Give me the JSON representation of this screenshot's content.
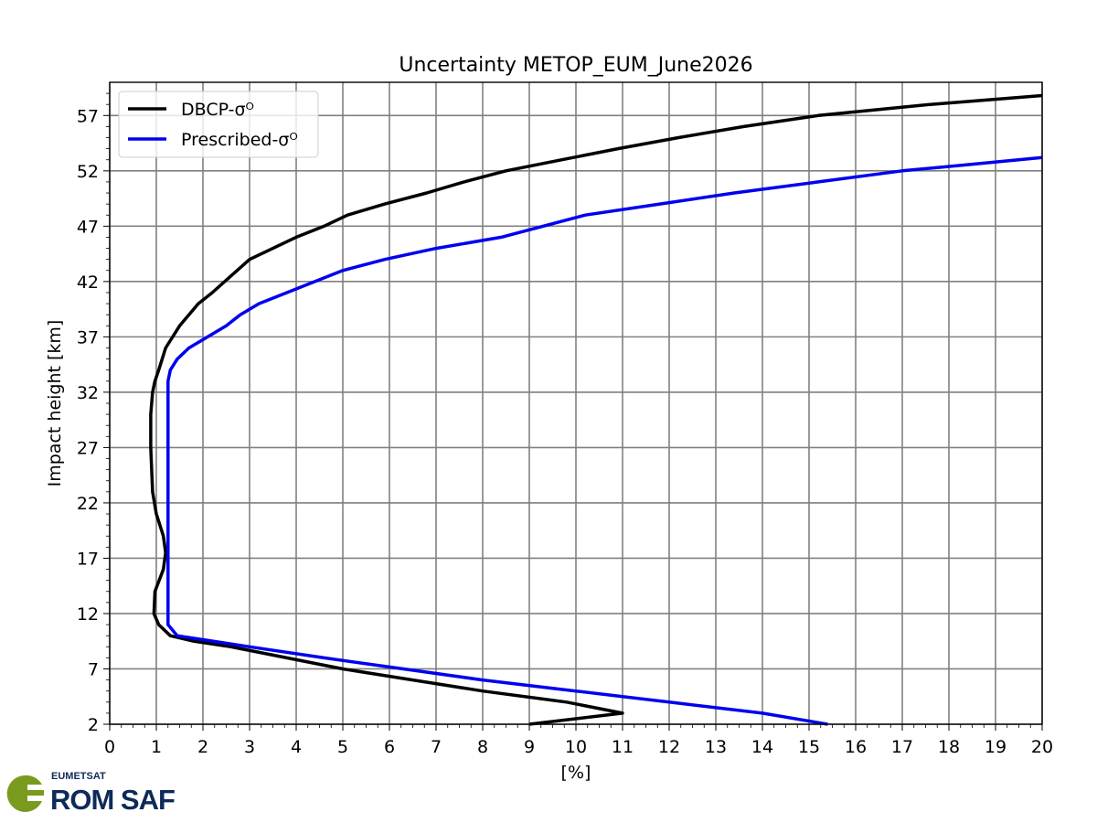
{
  "chart_data": {
    "type": "line",
    "title": "Uncertainty METOP_EUM_June2026",
    "xlabel": "[%]",
    "ylabel": "Impact height [km]",
    "xlim": [
      0,
      20
    ],
    "ylim": [
      2,
      60
    ],
    "x_ticks": [
      0,
      1,
      2,
      3,
      4,
      5,
      6,
      7,
      8,
      9,
      10,
      11,
      12,
      13,
      14,
      15,
      16,
      17,
      18,
      19,
      20
    ],
    "y_ticks": [
      2,
      7,
      12,
      17,
      22,
      27,
      32,
      37,
      42,
      47,
      52,
      57
    ],
    "grid": true,
    "legend_position": "top-left",
    "series": [
      {
        "name": "DBCP-σᴼ",
        "color": "#000000",
        "points": [
          [
            9.0,
            2
          ],
          [
            11.0,
            3
          ],
          [
            9.8,
            4
          ],
          [
            8.0,
            5
          ],
          [
            6.5,
            6
          ],
          [
            5.0,
            7
          ],
          [
            3.8,
            8
          ],
          [
            2.6,
            9
          ],
          [
            1.8,
            9.5
          ],
          [
            1.3,
            10
          ],
          [
            1.05,
            11
          ],
          [
            0.95,
            12
          ],
          [
            0.97,
            14
          ],
          [
            1.15,
            16
          ],
          [
            1.2,
            17.5
          ],
          [
            1.15,
            19
          ],
          [
            1.0,
            21
          ],
          [
            0.92,
            23
          ],
          [
            0.9,
            25
          ],
          [
            0.88,
            27
          ],
          [
            0.88,
            30
          ],
          [
            0.92,
            32
          ],
          [
            0.97,
            33
          ],
          [
            1.05,
            34
          ],
          [
            1.2,
            36
          ],
          [
            1.5,
            38
          ],
          [
            1.9,
            40
          ],
          [
            2.2,
            41
          ],
          [
            2.6,
            42.5
          ],
          [
            3.0,
            44
          ],
          [
            3.5,
            45
          ],
          [
            4.0,
            46
          ],
          [
            4.6,
            47
          ],
          [
            5.1,
            48
          ],
          [
            5.9,
            49
          ],
          [
            6.8,
            50
          ],
          [
            7.6,
            51
          ],
          [
            8.5,
            52
          ],
          [
            9.7,
            53
          ],
          [
            10.9,
            54
          ],
          [
            12.2,
            55
          ],
          [
            13.6,
            56
          ],
          [
            15.2,
            57
          ],
          [
            17.6,
            58
          ],
          [
            20.0,
            58.8
          ]
        ]
      },
      {
        "name": "Prescribed-σᴼ",
        "color": "#0000ee",
        "points": [
          [
            15.4,
            2
          ],
          [
            14.0,
            3
          ],
          [
            12.0,
            4
          ],
          [
            10.0,
            5
          ],
          [
            8.0,
            6
          ],
          [
            6.3,
            7
          ],
          [
            4.6,
            8
          ],
          [
            3.0,
            9
          ],
          [
            1.45,
            10
          ],
          [
            1.25,
            11
          ],
          [
            1.25,
            12
          ],
          [
            1.25,
            20
          ],
          [
            1.25,
            33
          ],
          [
            1.3,
            34
          ],
          [
            1.45,
            35
          ],
          [
            1.7,
            36
          ],
          [
            2.1,
            37
          ],
          [
            2.5,
            38
          ],
          [
            2.8,
            39
          ],
          [
            3.2,
            40
          ],
          [
            3.8,
            41
          ],
          [
            4.4,
            42
          ],
          [
            5.0,
            43
          ],
          [
            5.9,
            44
          ],
          [
            7.0,
            45
          ],
          [
            8.4,
            46
          ],
          [
            9.3,
            47
          ],
          [
            10.2,
            48
          ],
          [
            11.8,
            49
          ],
          [
            13.4,
            50
          ],
          [
            15.2,
            51
          ],
          [
            17.0,
            52
          ],
          [
            18.5,
            52.6
          ],
          [
            20.0,
            53.2
          ]
        ]
      }
    ]
  },
  "logo": {
    "org_small": "EUMETSAT",
    "org_big": "ROM SAF",
    "text_color": "#0e2a59",
    "mark_color": "#7a9a1d"
  }
}
